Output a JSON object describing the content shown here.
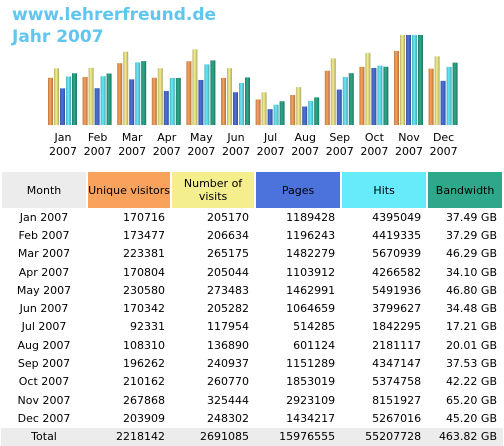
{
  "header": {
    "site": "www.lehrerfreund.de",
    "period": "Jahr 2007"
  },
  "colors": {
    "visitors": "#f9a25b",
    "visits": "#f4ee8c",
    "pages": "#4c72dc",
    "hits": "#66ebfb",
    "bandwidth": "#2ea88a",
    "header_gray": "#ececec"
  },
  "table": {
    "headers": {
      "month": "Month",
      "visitors": "Unique visitors",
      "visits": "Number of visits",
      "pages": "Pages",
      "hits": "Hits",
      "bandwidth": "Bandwidth"
    },
    "rows": [
      {
        "month": "Jan 2007",
        "visitors": "170716",
        "visits": "205170",
        "pages": "1189428",
        "hits": "4395049",
        "bandwidth": "37.49 GB"
      },
      {
        "month": "Feb 2007",
        "visitors": "173477",
        "visits": "206634",
        "pages": "1196243",
        "hits": "4419335",
        "bandwidth": "37.29 GB"
      },
      {
        "month": "Mar 2007",
        "visitors": "223381",
        "visits": "265175",
        "pages": "1482279",
        "hits": "5670939",
        "bandwidth": "46.29 GB"
      },
      {
        "month": "Apr 2007",
        "visitors": "170804",
        "visits": "205044",
        "pages": "1103912",
        "hits": "4266582",
        "bandwidth": "34.10 GB"
      },
      {
        "month": "May 2007",
        "visitors": "230580",
        "visits": "273483",
        "pages": "1462991",
        "hits": "5491936",
        "bandwidth": "46.80 GB"
      },
      {
        "month": "Jun 2007",
        "visitors": "170342",
        "visits": "205282",
        "pages": "1064659",
        "hits": "3799627",
        "bandwidth": "34.48 GB"
      },
      {
        "month": "Jul 2007",
        "visitors": "92331",
        "visits": "117954",
        "pages": "514285",
        "hits": "1842295",
        "bandwidth": "17.21 GB"
      },
      {
        "month": "Aug 2007",
        "visitors": "108310",
        "visits": "136890",
        "pages": "601124",
        "hits": "2181117",
        "bandwidth": "20.01 GB"
      },
      {
        "month": "Sep 2007",
        "visitors": "196262",
        "visits": "240937",
        "pages": "1151289",
        "hits": "4347147",
        "bandwidth": "37.53 GB"
      },
      {
        "month": "Oct 2007",
        "visitors": "210162",
        "visits": "260770",
        "pages": "1853019",
        "hits": "5374758",
        "bandwidth": "42.22 GB"
      },
      {
        "month": "Nov 2007",
        "visitors": "267868",
        "visits": "325444",
        "pages": "2923109",
        "hits": "8151927",
        "bandwidth": "65.20 GB"
      },
      {
        "month": "Dec 2007",
        "visitors": "203909",
        "visits": "248302",
        "pages": "1434217",
        "hits": "5267016",
        "bandwidth": "45.20 GB"
      }
    ],
    "total": {
      "month": "Total",
      "visitors": "2218142",
      "visits": "2691085",
      "pages": "15976555",
      "hits": "55207728",
      "bandwidth": "463.82 GB"
    }
  },
  "chart_data": {
    "type": "bar",
    "categories": [
      "Jan 2007",
      "Feb 2007",
      "Mar 2007",
      "Apr 2007",
      "May 2007",
      "Jun 2007",
      "Jul 2007",
      "Aug 2007",
      "Sep 2007",
      "Oct 2007",
      "Nov 2007",
      "Dec 2007"
    ],
    "category_lines": [
      [
        "Jan",
        "2007"
      ],
      [
        "Feb",
        "2007"
      ],
      [
        "Mar",
        "2007"
      ],
      [
        "Apr",
        "2007"
      ],
      [
        "May",
        "2007"
      ],
      [
        "Jun",
        "2007"
      ],
      [
        "Jul",
        "2007"
      ],
      [
        "Aug",
        "2007"
      ],
      [
        "Sep",
        "2007"
      ],
      [
        "Oct",
        "2007"
      ],
      [
        "Nov",
        "2007"
      ],
      [
        "Dec",
        "2007"
      ]
    ],
    "series": [
      {
        "key": "visitors",
        "color": "#f9a25b",
        "values": [
          170716,
          173477,
          223381,
          170804,
          230580,
          170342,
          92331,
          108310,
          196262,
          210162,
          267868,
          203909
        ]
      },
      {
        "key": "visits",
        "color": "#f4ee8c",
        "values": [
          205170,
          206634,
          265175,
          205044,
          273483,
          205282,
          117954,
          136890,
          240937,
          260770,
          325444,
          248302
        ]
      },
      {
        "key": "pages",
        "color": "#4c72dc",
        "values": [
          1189428,
          1196243,
          1482279,
          1103912,
          1462991,
          1064659,
          514285,
          601124,
          1151289,
          1853019,
          2923109,
          1434217
        ]
      },
      {
        "key": "hits",
        "color": "#66ebfb",
        "values": [
          4395049,
          4419335,
          5670939,
          4266582,
          5491936,
          3799627,
          1842295,
          2181117,
          4347147,
          5374758,
          8151927,
          5267016
        ]
      },
      {
        "key": "bandwidth",
        "color": "#2ea88a",
        "values": [
          37.49,
          37.29,
          46.29,
          34.1,
          46.8,
          34.48,
          17.21,
          20.01,
          37.53,
          42.22,
          65.2,
          45.2
        ]
      }
    ],
    "scale_groups": [
      [
        "visitors",
        "visits"
      ],
      [
        "pages"
      ],
      [
        "hits"
      ],
      [
        "bandwidth"
      ]
    ],
    "grid": false,
    "legend": "table-below"
  }
}
